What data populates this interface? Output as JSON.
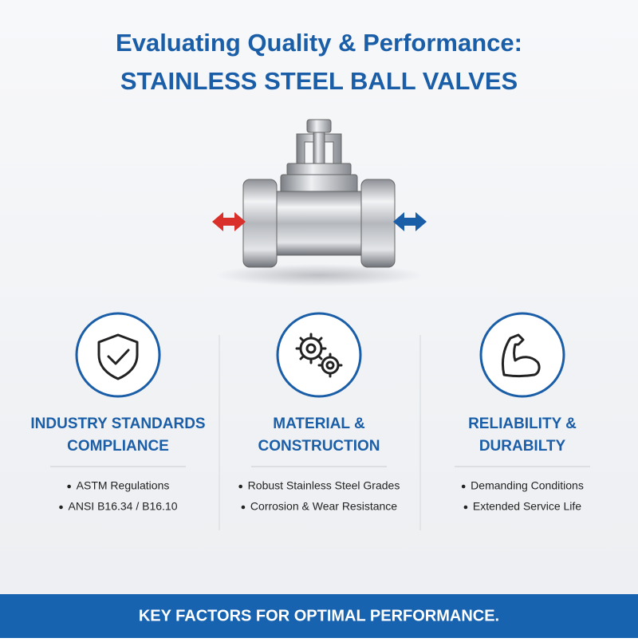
{
  "header": {
    "title_lines": [
      "Evaluating Quality & Performance:",
      "STAINLESS STEEL BALL VALVES"
    ]
  },
  "columns": [
    {
      "title_lines": [
        "INDUSTRY STANDARDS",
        "COMPLIANCE"
      ],
      "bullets": [
        "ASTM Regulations",
        "ANSI B16.34 / B16.10"
      ]
    },
    {
      "title_lines": [
        "MATERIAL &",
        "CONSTRUCTION"
      ],
      "bullets": [
        "Robust Stainless Steel Grades",
        "Corrosion & Wear Resistance"
      ]
    },
    {
      "title_lines": [
        "RELIABILITY &",
        "DURABILTY"
      ],
      "bullets": [
        "Demanding Conditions",
        "Extended Service Life"
      ]
    }
  ],
  "footer": {
    "text": "KEY FACTORS FOR OPTIMAL PERFORMANCE."
  }
}
